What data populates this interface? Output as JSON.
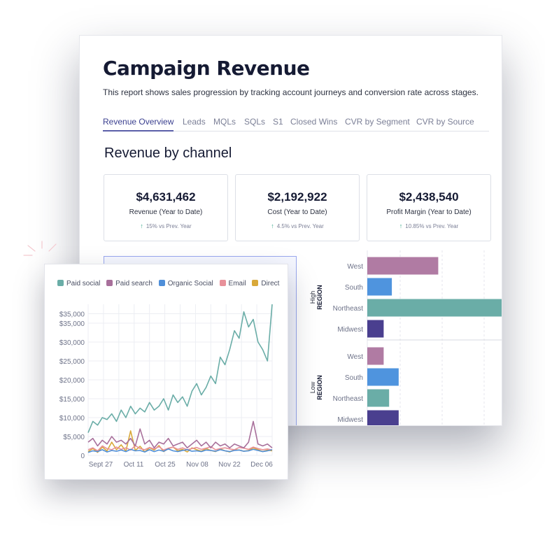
{
  "report": {
    "title": "Campaign Revenue",
    "description": "This report shows sales progression by tracking account journeys and conversion rate across stages.",
    "tabs": [
      "Revenue Overview",
      "Leads",
      "MQLs",
      "SQLs",
      "S1",
      "Closed Wins",
      "CVR by Segment",
      "CVR by Source"
    ],
    "active_tab": "Revenue Overview",
    "section_title": "Revenue by channel"
  },
  "kpis": [
    {
      "value": "$4,631,462",
      "label": "Revenue (Year to Date)",
      "change": "15% vs Prev. Year"
    },
    {
      "value": "$2,192,922",
      "label": "Cost (Year to Date)",
      "change": "4.5% vs Prev. Year"
    },
    {
      "value": "$2,438,540",
      "label": "Profit Margin (Year to Date)",
      "change": "10.85% vs Prev. Year"
    }
  ],
  "colors": {
    "paid_social": "#6aada7",
    "paid_search": "#a8709b",
    "organic_social": "#4f8fd9",
    "email": "#e8919a",
    "direct": "#d9a93a",
    "west": "#b07ba3",
    "south": "#4f94de",
    "northeast": "#6aada7",
    "midwest": "#4a3f8f"
  },
  "chart_data": [
    {
      "type": "line",
      "title": "",
      "xlabel": "",
      "ylabel": "",
      "legend_position": "top",
      "x_ticks": [
        "Sept 27",
        "Oct 11",
        "Oct 25",
        "Nov 08",
        "Nov 22",
        "Dec 06"
      ],
      "y_ticks": [
        "$35,000",
        "$35,000",
        "$30,000",
        "$25,000",
        "$20,000",
        "$15,000",
        "$10,000",
        "$5,000",
        "0"
      ],
      "ylim": [
        0,
        40000
      ],
      "x": [
        "Sep 22",
        "Sep 24",
        "Sep 26",
        "Sep 28",
        "Sep 30",
        "Oct 02",
        "Oct 04",
        "Oct 06",
        "Oct 08",
        "Oct 10",
        "Oct 12",
        "Oct 14",
        "Oct 16",
        "Oct 18",
        "Oct 20",
        "Oct 22",
        "Oct 24",
        "Oct 26",
        "Oct 28",
        "Oct 30",
        "Nov 01",
        "Nov 03",
        "Nov 05",
        "Nov 07",
        "Nov 09",
        "Nov 11",
        "Nov 13",
        "Nov 15",
        "Nov 17",
        "Nov 19",
        "Nov 21",
        "Nov 23",
        "Nov 25",
        "Nov 27",
        "Nov 29",
        "Dec 01",
        "Dec 03",
        "Dec 05",
        "Dec 07",
        "Dec 09"
      ],
      "series": [
        {
          "name": "Paid social",
          "color_key": "paid_social",
          "values": [
            6000,
            9000,
            8000,
            10000,
            9500,
            11000,
            9000,
            12000,
            10000,
            13000,
            11000,
            12500,
            11500,
            14000,
            12000,
            13000,
            15000,
            12000,
            16000,
            14000,
            15500,
            13000,
            17000,
            19000,
            16000,
            18000,
            21000,
            19000,
            26000,
            24000,
            28000,
            33000,
            31000,
            38000,
            34000,
            36000,
            30000,
            28000,
            25000,
            40000
          ]
        },
        {
          "name": "Paid search",
          "color_key": "paid_search",
          "values": [
            3500,
            4500,
            2500,
            4000,
            3000,
            5000,
            3500,
            4000,
            3000,
            4500,
            2500,
            7000,
            3000,
            4000,
            2000,
            3500,
            3000,
            4500,
            2500,
            3000,
            3500,
            2000,
            3000,
            4000,
            2500,
            3500,
            2000,
            3500,
            2500,
            3000,
            2000,
            3000,
            2500,
            2000,
            3500,
            9000,
            3000,
            2500,
            3000,
            2000
          ]
        },
        {
          "name": "Organic Social",
          "color_key": "organic_social",
          "values": [
            800,
            1200,
            1000,
            1500,
            900,
            1300,
            1100,
            1400,
            1000,
            1600,
            1200,
            1300,
            900,
            1500,
            1000,
            1400,
            1100,
            1700,
            1200,
            1000,
            1300,
            1500,
            1100,
            1200,
            1000,
            1400,
            1300,
            1100,
            1500,
            1200,
            1000,
            1300,
            1400,
            1100,
            1200,
            1600,
            1300,
            1000,
            1200,
            1500
          ]
        },
        {
          "name": "Email",
          "color_key": "email",
          "values": [
            1500,
            2000,
            1200,
            2500,
            1800,
            1500,
            2200,
            1600,
            2000,
            1400,
            2600,
            1800,
            1500,
            2100,
            1700,
            2300,
            1400,
            1900,
            2200,
            1600,
            2000,
            1500,
            1800,
            2100,
            1600,
            1900,
            2300,
            1500,
            1800,
            2000,
            1700,
            1500,
            2100,
            1900,
            1600,
            2200,
            1800,
            1500,
            1700,
            1400
          ]
        },
        {
          "name": "Direct",
          "color_key": "direct",
          "values": [
            1000,
            1800,
            800,
            2200,
            1200,
            3500,
            1500,
            2800,
            1100,
            6500,
            1300,
            2400,
            900,
            2000,
            1400,
            2600,
            1000,
            1800,
            2200,
            1200,
            1600,
            900,
            2000,
            1500,
            1100,
            1800,
            1300,
            1000,
            1700,
            1200,
            900,
            1500,
            1400,
            1100,
            1300,
            2000,
            1500,
            1000,
            1400,
            1200
          ]
        }
      ]
    },
    {
      "type": "bar",
      "orientation": "horizontal",
      "groups": [
        {
          "name": "High",
          "axis_title": "REGION",
          "categories": [
            "West",
            "South",
            "Northeast",
            "Midwest"
          ],
          "values": [
            52,
            18,
            100,
            12
          ]
        },
        {
          "name": "Low",
          "axis_title": "REGION",
          "categories": [
            "West",
            "South",
            "Northeast",
            "Midwest"
          ],
          "values": [
            12,
            23,
            16,
            23
          ]
        }
      ]
    }
  ]
}
